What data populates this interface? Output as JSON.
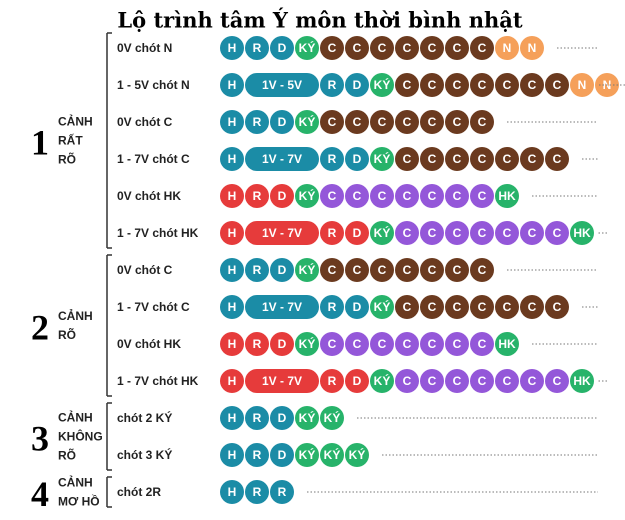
{
  "title": "Lộ trình tâm Ý môn thời bình nhật",
  "groups": [
    {
      "number": "1",
      "label": [
        "CẢNH",
        "RẤT",
        "RÕ"
      ],
      "rows": [
        {
          "label": "0V chót N",
          "tokens": [
            "H",
            "R",
            "D",
            "KÝ",
            "C",
            "C",
            "C",
            "C",
            "C",
            "C",
            "C",
            "N",
            "N"
          ],
          "colors": [
            "#1b8ca6",
            "#1b8ca6",
            "#1b8ca6",
            "#27b36a",
            "#6b3a1f",
            "#6b3a1f",
            "#6b3a1f",
            "#6b3a1f",
            "#6b3a1f",
            "#6b3a1f",
            "#6b3a1f",
            "#f5a05a",
            "#f5a05a"
          ]
        },
        {
          "label": "1 - 5V chót N",
          "tokens": [
            "H",
            "1V - 5V",
            "R",
            "D",
            "KÝ",
            "C",
            "C",
            "C",
            "C",
            "C",
            "C",
            "C",
            "N",
            "N"
          ],
          "colors": [
            "#1b8ca6",
            "#1b8ca6",
            "#1b8ca6",
            "#1b8ca6",
            "#27b36a",
            "#6b3a1f",
            "#6b3a1f",
            "#6b3a1f",
            "#6b3a1f",
            "#6b3a1f",
            "#6b3a1f",
            "#6b3a1f",
            "#f5a05a",
            "#f5a05a"
          ]
        },
        {
          "label": "0V chót C",
          "tokens": [
            "H",
            "R",
            "D",
            "KÝ",
            "C",
            "C",
            "C",
            "C",
            "C",
            "C",
            "C"
          ],
          "colors": [
            "#1b8ca6",
            "#1b8ca6",
            "#1b8ca6",
            "#27b36a",
            "#6b3a1f",
            "#6b3a1f",
            "#6b3a1f",
            "#6b3a1f",
            "#6b3a1f",
            "#6b3a1f",
            "#6b3a1f"
          ]
        },
        {
          "label": "1 - 7V chót C",
          "tokens": [
            "H",
            "1V - 7V",
            "R",
            "D",
            "KÝ",
            "C",
            "C",
            "C",
            "C",
            "C",
            "C",
            "C"
          ],
          "colors": [
            "#1b8ca6",
            "#1b8ca6",
            "#1b8ca6",
            "#1b8ca6",
            "#27b36a",
            "#6b3a1f",
            "#6b3a1f",
            "#6b3a1f",
            "#6b3a1f",
            "#6b3a1f",
            "#6b3a1f",
            "#6b3a1f"
          ]
        },
        {
          "label": "0V chót HK",
          "tokens": [
            "H",
            "R",
            "D",
            "KÝ",
            "C",
            "C",
            "C",
            "C",
            "C",
            "C",
            "C",
            "HK"
          ],
          "colors": [
            "#e63b3b",
            "#e63b3b",
            "#e63b3b",
            "#27b36a",
            "#9457d9",
            "#9457d9",
            "#9457d9",
            "#9457d9",
            "#9457d9",
            "#9457d9",
            "#9457d9",
            "#27b36a"
          ]
        },
        {
          "label": "1 - 7V chót HK",
          "tokens": [
            "H",
            "1V - 7V",
            "R",
            "D",
            "KÝ",
            "C",
            "C",
            "C",
            "C",
            "C",
            "C",
            "C",
            "HK"
          ],
          "colors": [
            "#e63b3b",
            "#e63b3b",
            "#e63b3b",
            "#e63b3b",
            "#27b36a",
            "#9457d9",
            "#9457d9",
            "#9457d9",
            "#9457d9",
            "#9457d9",
            "#9457d9",
            "#9457d9",
            "#27b36a"
          ]
        }
      ]
    },
    {
      "number": "2",
      "label": [
        "CẢNH",
        "RÕ"
      ],
      "rows": [
        {
          "label": "0V chót C",
          "tokens": [
            "H",
            "R",
            "D",
            "KÝ",
            "C",
            "C",
            "C",
            "C",
            "C",
            "C",
            "C"
          ],
          "colors": [
            "#1b8ca6",
            "#1b8ca6",
            "#1b8ca6",
            "#27b36a",
            "#6b3a1f",
            "#6b3a1f",
            "#6b3a1f",
            "#6b3a1f",
            "#6b3a1f",
            "#6b3a1f",
            "#6b3a1f"
          ]
        },
        {
          "label": "1 - 7V chót C",
          "tokens": [
            "H",
            "1V - 7V",
            "R",
            "D",
            "KÝ",
            "C",
            "C",
            "C",
            "C",
            "C",
            "C",
            "C"
          ],
          "colors": [
            "#1b8ca6",
            "#1b8ca6",
            "#1b8ca6",
            "#1b8ca6",
            "#27b36a",
            "#6b3a1f",
            "#6b3a1f",
            "#6b3a1f",
            "#6b3a1f",
            "#6b3a1f",
            "#6b3a1f",
            "#6b3a1f"
          ]
        },
        {
          "label": "0V chót HK",
          "tokens": [
            "H",
            "R",
            "D",
            "KÝ",
            "C",
            "C",
            "C",
            "C",
            "C",
            "C",
            "C",
            "HK"
          ],
          "colors": [
            "#e63b3b",
            "#e63b3b",
            "#e63b3b",
            "#27b36a",
            "#9457d9",
            "#9457d9",
            "#9457d9",
            "#9457d9",
            "#9457d9",
            "#9457d9",
            "#9457d9",
            "#27b36a"
          ]
        },
        {
          "label": "1 - 7V chót HK",
          "tokens": [
            "H",
            "1V - 7V",
            "R",
            "D",
            "KÝ",
            "C",
            "C",
            "C",
            "C",
            "C",
            "C",
            "C",
            "HK"
          ],
          "colors": [
            "#e63b3b",
            "#e63b3b",
            "#e63b3b",
            "#e63b3b",
            "#27b36a",
            "#9457d9",
            "#9457d9",
            "#9457d9",
            "#9457d9",
            "#9457d9",
            "#9457d9",
            "#9457d9",
            "#27b36a"
          ]
        }
      ]
    },
    {
      "number": "3",
      "label": [
        "CẢNH",
        "KHÔNG",
        "RÕ"
      ],
      "rows": [
        {
          "label": "chót 2 KÝ",
          "tokens": [
            "H",
            "R",
            "D",
            "KÝ",
            "KÝ"
          ],
          "colors": [
            "#1b8ca6",
            "#1b8ca6",
            "#1b8ca6",
            "#27b36a",
            "#27b36a"
          ]
        },
        {
          "label": "chót 3 KÝ",
          "tokens": [
            "H",
            "R",
            "D",
            "KÝ",
            "KÝ",
            "KÝ"
          ],
          "colors": [
            "#1b8ca6",
            "#1b8ca6",
            "#1b8ca6",
            "#27b36a",
            "#27b36a",
            "#27b36a"
          ]
        }
      ]
    },
    {
      "number": "4",
      "label": [
        "CẢNH",
        "MƠ HỒ"
      ],
      "rows": [
        {
          "label": "chót 2R",
          "tokens": [
            "H",
            "R",
            "R"
          ],
          "colors": [
            "#1b8ca6",
            "#1b8ca6",
            "#1b8ca6"
          ]
        }
      ]
    }
  ]
}
